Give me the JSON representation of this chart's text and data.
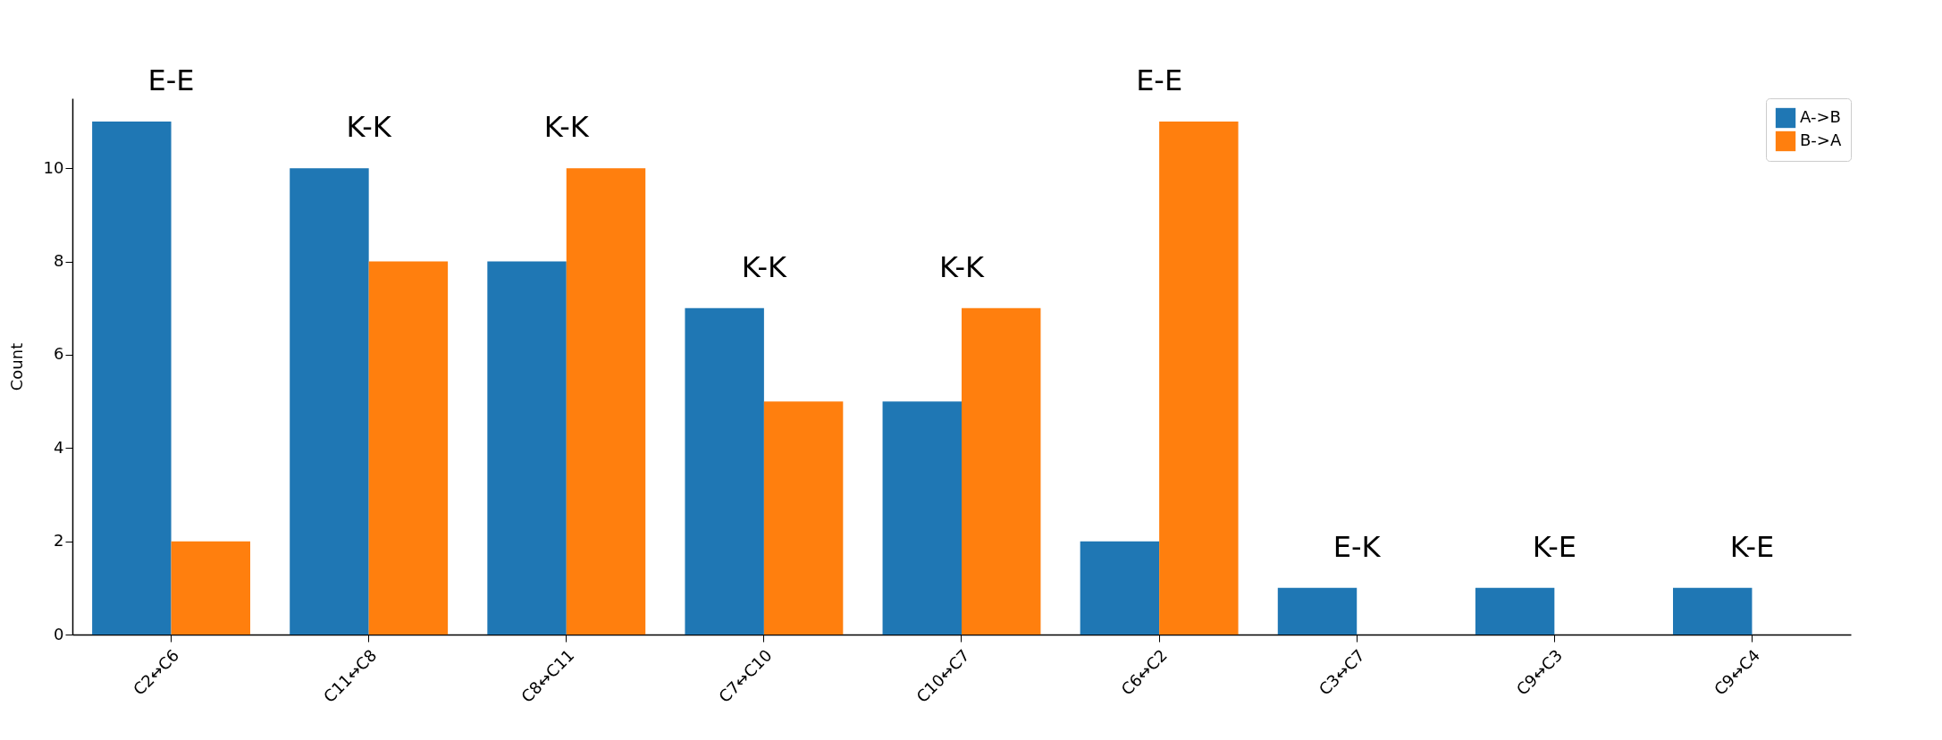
{
  "chart_data": {
    "type": "bar",
    "ylabel": "Count",
    "categories": [
      "C2↔C6",
      "C11↔C8",
      "C8↔C11",
      "C7↔C10",
      "C10↔C7",
      "C6↔C2",
      "C3↔C7",
      "C9↔C3",
      "C9↔C4"
    ],
    "series": [
      {
        "name": "A->B",
        "color": "#1f77b4",
        "values": [
          11,
          10,
          8,
          7,
          5,
          2,
          1,
          1,
          1
        ]
      },
      {
        "name": "B->A",
        "color": "#ff7f0e",
        "values": [
          2,
          8,
          10,
          5,
          7,
          11,
          0,
          0,
          0
        ]
      }
    ],
    "ylim": [
      0,
      11.5
    ],
    "yticks": [
      0,
      2,
      4,
      6,
      8,
      10
    ],
    "grid": false,
    "legend": "top right",
    "annotations": [
      "E-E",
      "K-K",
      "K-K",
      "K-K",
      "K-K",
      "E-E",
      "E-K",
      "K-E",
      "K-E"
    ]
  }
}
